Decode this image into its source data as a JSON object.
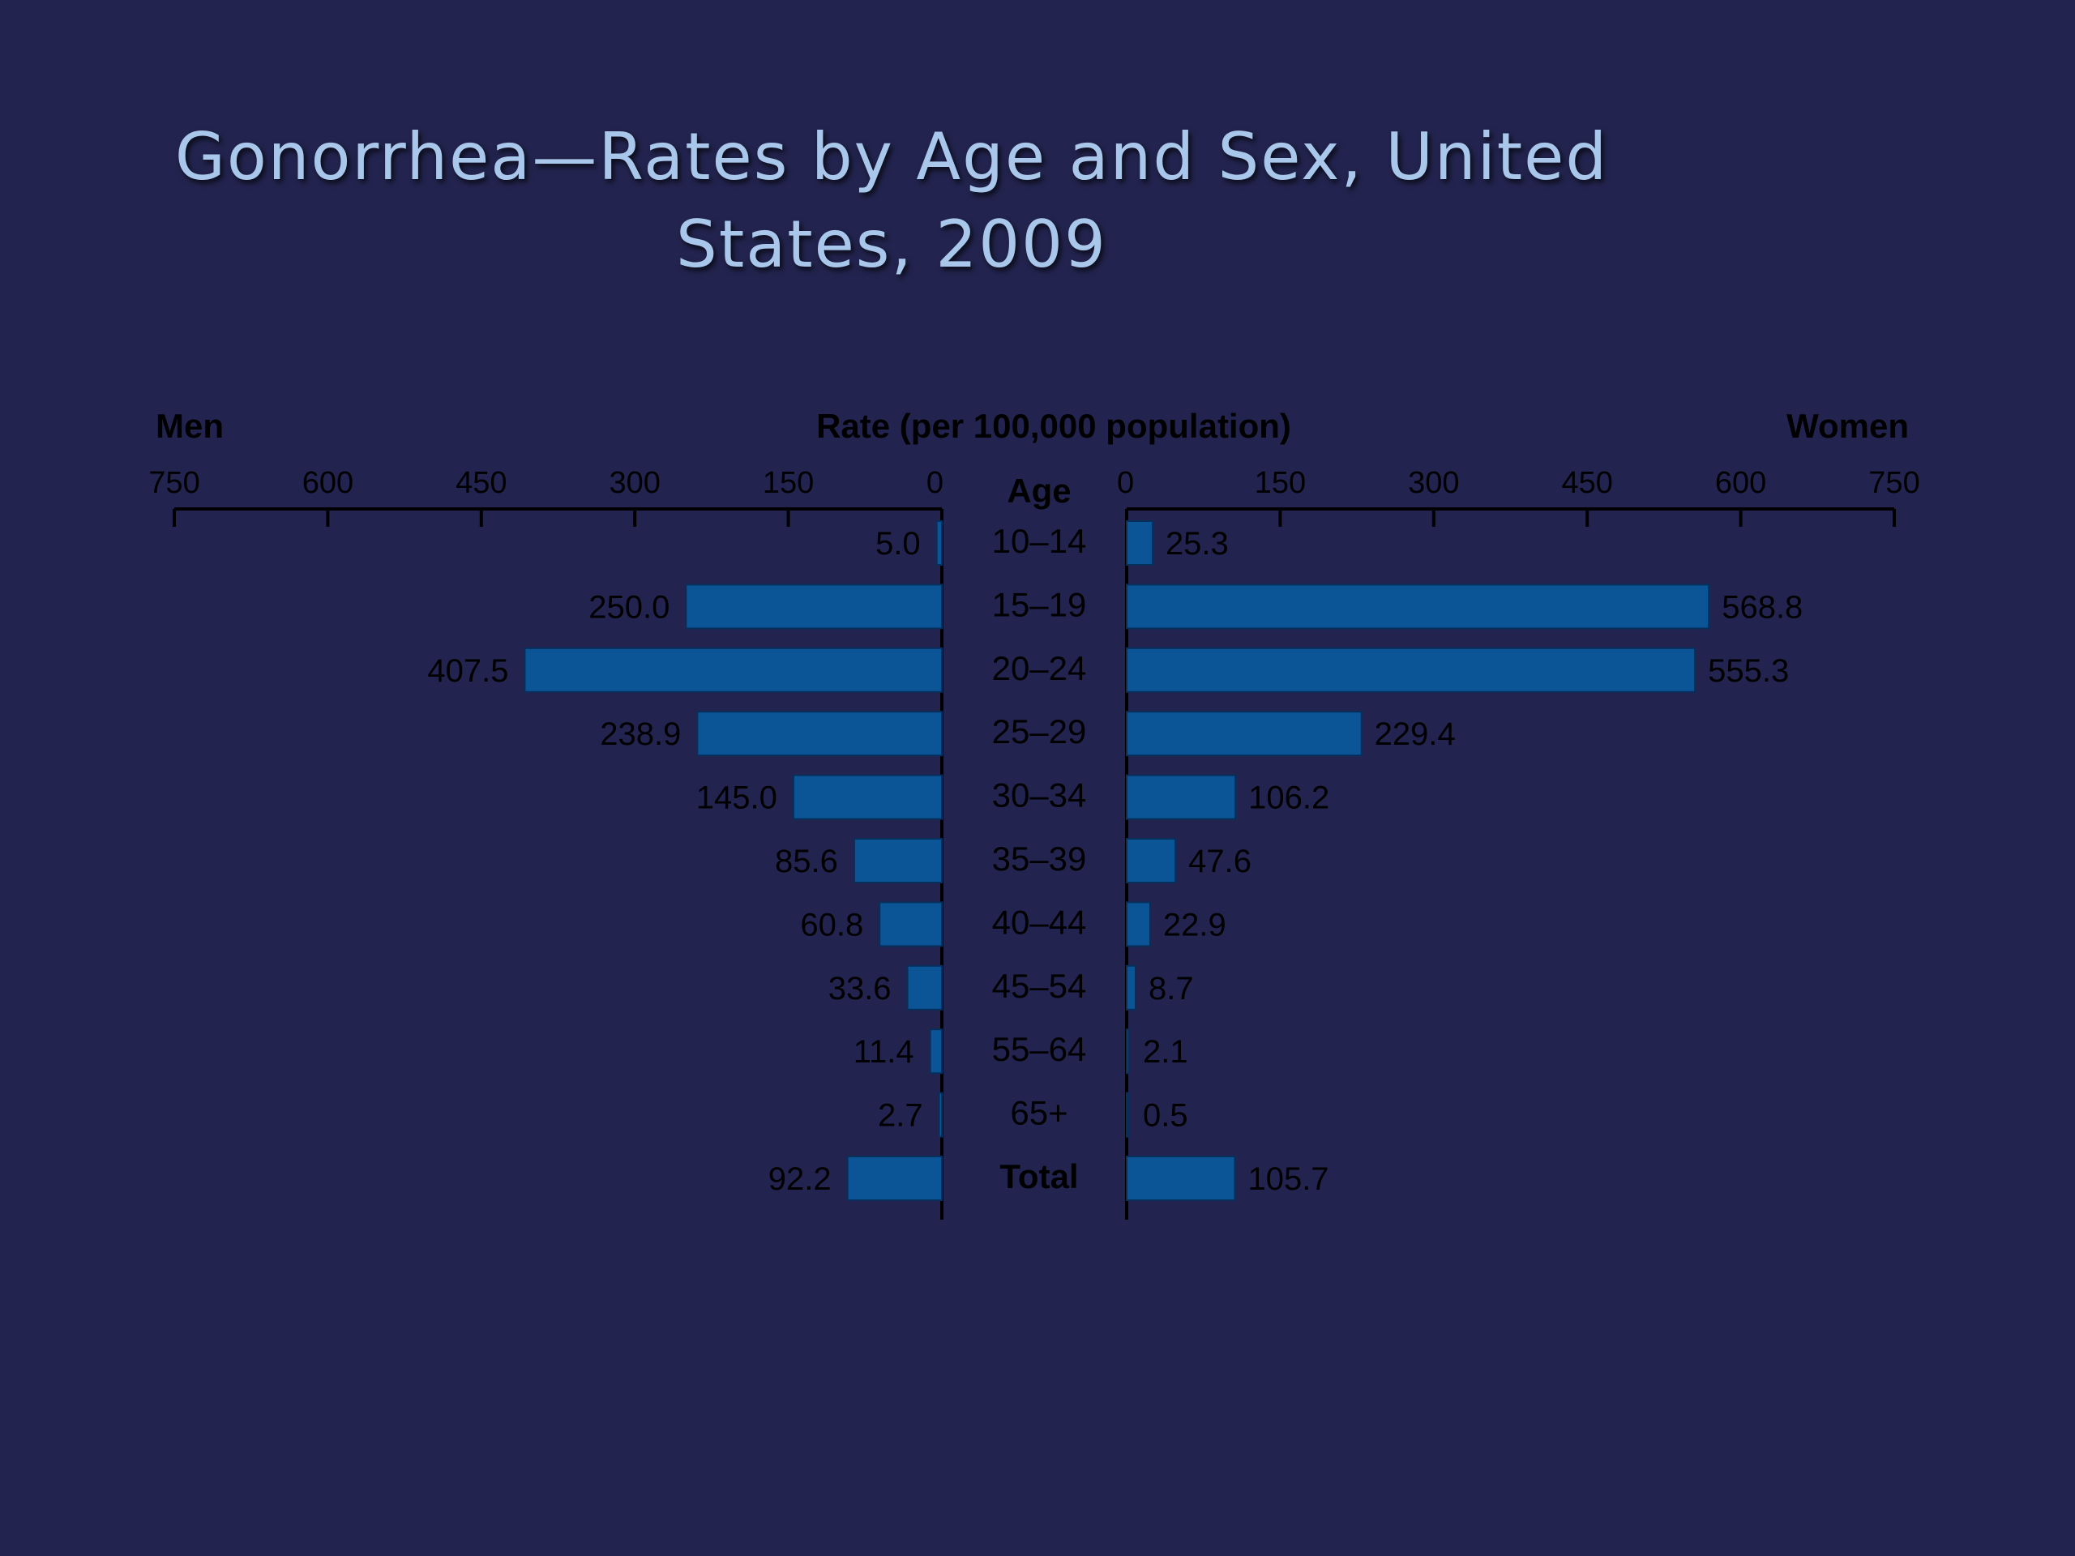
{
  "slide": {
    "title_line1": "Gonorrhea—Rates by Age and Sex, United",
    "title_line2": "States, 2009"
  },
  "chart_data": {
    "type": "bar",
    "orientation": "horizontal",
    "layout": "population-pyramid",
    "axis_title": "Rate (per 100,000 population)",
    "center_label": "Age",
    "xlim": [
      0,
      750
    ],
    "ticks": [
      "0",
      "150",
      "300",
      "450",
      "600",
      "750"
    ],
    "categories": [
      "10–14",
      "15–19",
      "20–24",
      "25–29",
      "30–34",
      "35–39",
      "40–44",
      "45–54",
      "55–64",
      "65+",
      "Total"
    ],
    "series": [
      {
        "name": "Men",
        "side": "left",
        "values": [
          5.0,
          250.0,
          407.5,
          238.9,
          145.0,
          85.6,
          60.8,
          33.6,
          11.4,
          2.7,
          92.2
        ],
        "labels": [
          "5.0",
          "250.0",
          "407.5",
          "238.9",
          "145.0",
          "85.6",
          "60.8",
          "33.6",
          "11.4",
          "2.7",
          "92.2"
        ]
      },
      {
        "name": "Women",
        "side": "right",
        "values": [
          25.3,
          568.8,
          555.3,
          229.4,
          106.2,
          47.6,
          22.9,
          8.7,
          2.1,
          0.5,
          105.7
        ],
        "labels": [
          "25.3",
          "568.8",
          "555.3",
          "229.4",
          "106.2",
          "47.6",
          "22.9",
          "8.7",
          "2.1",
          "0.5",
          "105.7"
        ]
      }
    ],
    "colors": {
      "bar": "#0b5596",
      "bar_edge": "#062f5c",
      "background": "#22244f",
      "title": "#a9c7ea"
    }
  }
}
